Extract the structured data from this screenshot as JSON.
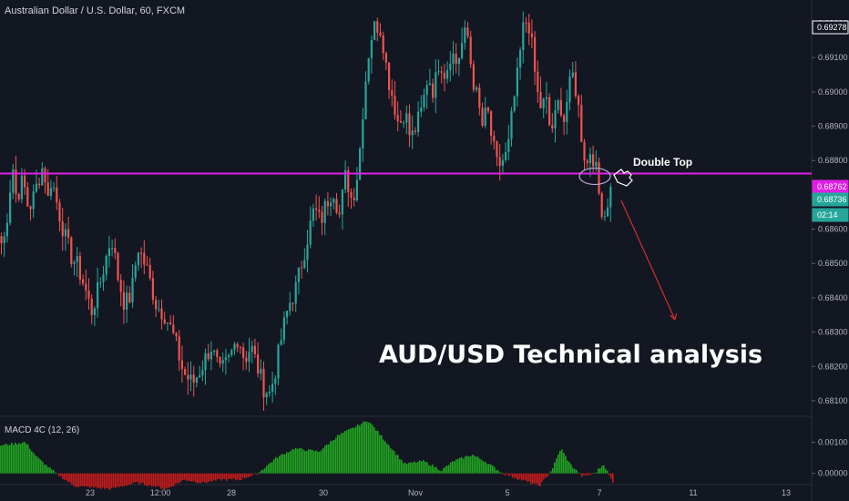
{
  "symbol_title": "Australian Dollar / U.S. Dollar, 60, FXCM",
  "headline": "AUD/USD Technical analysis",
  "colors": {
    "background": "#131722",
    "up": "#26a69a",
    "down": "#ef5350",
    "neckline": "#e01fe6",
    "macd_up": "#21a321",
    "macd_down": "#c31b1b",
    "arrow": "#d32f2f"
  },
  "chart_data": [
    {
      "type": "candlestick",
      "title": "Australian Dollar / U.S. Dollar, 60, FXCM",
      "yrange": [
        0.6806,
        0.6922
      ],
      "y_ticks": [
        "0.69200",
        "0.69100",
        "0.69000",
        "0.68900",
        "0.68800",
        "0.68700",
        "0.68600",
        "0.68500",
        "0.68400",
        "0.68300",
        "0.68200",
        "0.68100"
      ],
      "x_ticks": [
        "23",
        "12:00",
        "28",
        "30",
        "Nov",
        "5",
        "7",
        "11",
        "13"
      ],
      "price_tags": [
        {
          "label": "0.69278",
          "price": 0.69278,
          "style": "outline"
        },
        {
          "label": "0.68762",
          "price": 0.68762,
          "style": "magenta"
        },
        {
          "label": "0.68736",
          "price": 0.68736,
          "style": "green"
        },
        {
          "label": "02:14",
          "price": 0.68715,
          "style": "green"
        }
      ],
      "path": [
        [
          0.6856,
          0.6858,
          0.687,
          0.6878,
          0.6868,
          0.6874,
          0.6872,
          0.6866,
          0.6868,
          0.6872,
          0.6876,
          0.6879,
          0.6868,
          0.6875
        ],
        [
          0.6875,
          0.6866,
          0.6858,
          0.6852,
          0.6849,
          0.6843,
          0.6836,
          0.6842,
          0.685,
          0.6858,
          0.6846,
          0.6838,
          0.6841,
          0.6855
        ],
        [
          0.6855,
          0.6848,
          0.6838,
          0.6835,
          0.6828,
          0.6818,
          0.6815,
          0.682,
          0.6826,
          0.6818,
          0.6822,
          0.6829
        ],
        [
          0.6829,
          0.6822,
          0.6826,
          0.682,
          0.6814,
          0.6812,
          0.682,
          0.683,
          0.6838,
          0.6842,
          0.685,
          0.6858,
          0.6866,
          0.6862,
          0.6868,
          0.6872,
          0.6864,
          0.6876,
          0.6868,
          0.6878
        ],
        [
          0.6878,
          0.69,
          0.6915,
          0.692,
          0.6918,
          0.6905,
          0.6898,
          0.689,
          0.6895,
          0.6886,
          0.689,
          0.6895,
          0.6905,
          0.69,
          0.691,
          0.6905,
          0.6912,
          0.6908
        ],
        [
          0.6908,
          0.6914,
          0.6918,
          0.6905,
          0.6898,
          0.689,
          0.6895,
          0.6885,
          0.6878,
          0.688,
          0.6882,
          0.6895,
          0.6905,
          0.6918,
          0.6922
        ],
        [
          0.6922,
          0.6912,
          0.69,
          0.6895,
          0.6898,
          0.6888,
          0.6892,
          0.6898,
          0.6892,
          0.69,
          0.6905,
          0.6898,
          0.6886,
          0.6878,
          0.6884,
          0.6878,
          0.6868,
          0.6864,
          0.687,
          0.6874
        ]
      ]
    },
    {
      "type": "bar",
      "title": "MACD 4C (12, 26)",
      "yrange": [
        -0.0003,
        0.0018
      ],
      "y_ticks": [
        "0.00100",
        "0.00000"
      ],
      "envelope": [
        [
          0.0,
          0.0009
        ],
        [
          0.04,
          0.001
        ],
        [
          0.06,
          0.0005
        ],
        [
          0.09,
          0.0
        ],
        [
          0.12,
          -0.0004
        ],
        [
          0.18,
          -0.0005
        ],
        [
          0.22,
          -0.0003
        ],
        [
          0.25,
          -0.0004
        ],
        [
          0.27,
          -0.0005
        ],
        [
          0.3,
          -0.0002
        ],
        [
          0.33,
          -0.0003
        ],
        [
          0.36,
          -0.0002
        ],
        [
          0.39,
          -0.0002
        ],
        [
          0.42,
          0.0
        ],
        [
          0.45,
          0.0005
        ],
        [
          0.48,
          0.0008
        ],
        [
          0.52,
          0.0007
        ],
        [
          0.55,
          0.0012
        ],
        [
          0.57,
          0.0014
        ],
        [
          0.6,
          0.0017
        ],
        [
          0.63,
          0.001
        ],
        [
          0.66,
          0.0003
        ],
        [
          0.69,
          0.0004
        ],
        [
          0.72,
          0.0001
        ],
        [
          0.74,
          0.0004
        ],
        [
          0.77,
          0.0006
        ],
        [
          0.79,
          0.0004
        ],
        [
          0.82,
          0.0
        ],
        [
          0.85,
          -0.0002
        ],
        [
          0.88,
          -0.0004
        ],
        [
          0.9,
          0.0001
        ],
        [
          0.915,
          0.0008
        ],
        [
          0.93,
          0.0003
        ],
        [
          0.95,
          -0.0001
        ],
        [
          0.97,
          0.0
        ],
        [
          0.985,
          0.0003
        ],
        [
          1.0,
          -0.0003
        ]
      ]
    }
  ],
  "annotations": {
    "double_top_label": "Double Top",
    "double_top_price": 0.69278,
    "neckline_price": 0.68762
  }
}
